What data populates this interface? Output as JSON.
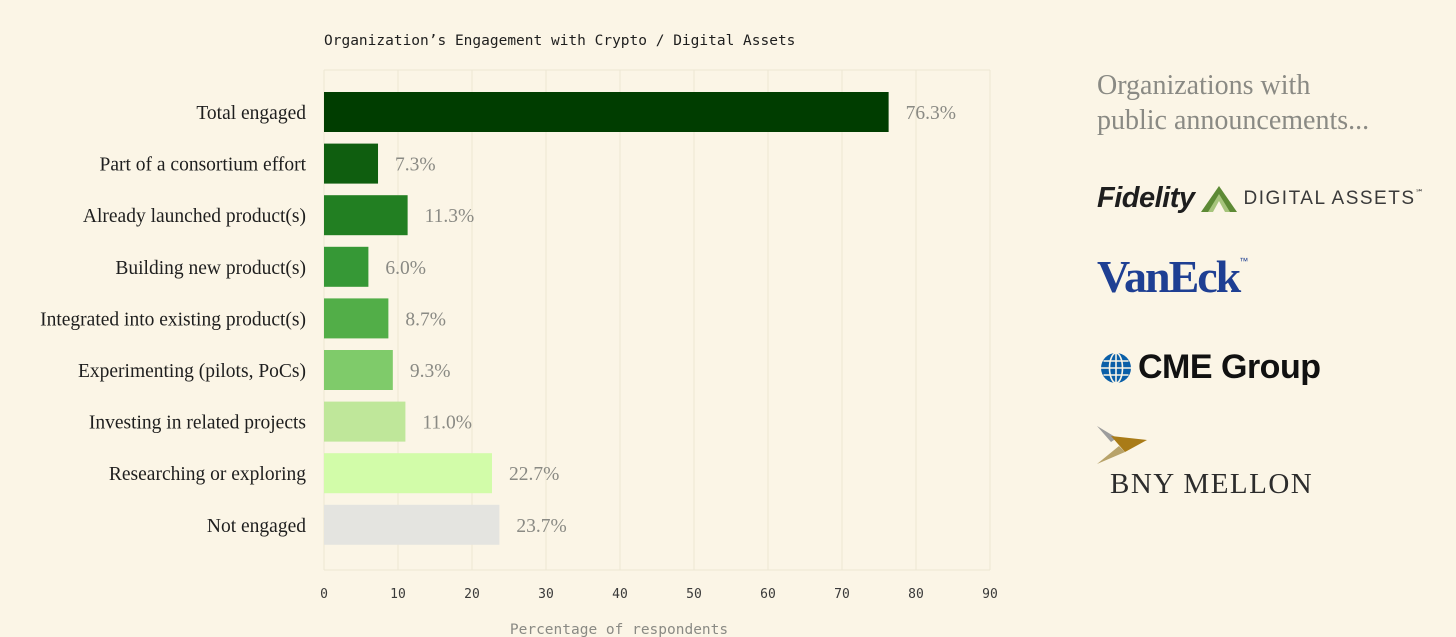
{
  "chart_data": {
    "type": "bar",
    "orientation": "horizontal",
    "title": "Organization’s Engagement with Crypto / Digital Assets",
    "xlabel": "Percentage of respondents",
    "ylabel": "",
    "xlim": [
      0,
      90
    ],
    "xticks": [
      "0",
      "10",
      "20",
      "30",
      "40",
      "50",
      "60",
      "70",
      "80",
      "90"
    ],
    "grid": "vertical",
    "categories": [
      "Total engaged",
      "Part of a consortium effort",
      "Already launched product(s)",
      "Building new product(s)",
      "Integrated into existing product(s)",
      "Experimenting (pilots, PoCs)",
      "Investing in related projects",
      "Researching or exploring",
      "Not engaged"
    ],
    "values": [
      76.3,
      7.3,
      11.3,
      6.0,
      8.7,
      9.3,
      11.0,
      22.7,
      23.7
    ],
    "value_labels": [
      "76.3%",
      "7.3%",
      "11.3%",
      "6.0%",
      "8.7%",
      "9.3%",
      "11.0%",
      "22.7%",
      "23.7%"
    ],
    "colors": [
      "#003d00",
      "#0f5e0f",
      "#227f22",
      "#369836",
      "#52ae48",
      "#7fcb6a",
      "#bfe79a",
      "#d2fca9",
      "#e4e4e0"
    ]
  },
  "sidebar": {
    "heading_line1": "Organizations with",
    "heading_line2": "public announcements...",
    "logos": [
      {
        "name": "fidelity",
        "text": "Fidelity",
        "subtext": "DIGITAL ASSETS",
        "mark": "℠"
      },
      {
        "name": "vaneck",
        "text": "VanEck",
        "mark": "™"
      },
      {
        "name": "cme",
        "text": "CME Group"
      },
      {
        "name": "bny",
        "text": "BNY MELLON"
      }
    ],
    "colors": {
      "fidelity_green": "#5d8a35",
      "vaneck_blue": "#1e3f93",
      "cme_blue": "#0a5fa8",
      "bny_gold": "#a97b17",
      "bny_gray": "#9c9c9c"
    }
  }
}
